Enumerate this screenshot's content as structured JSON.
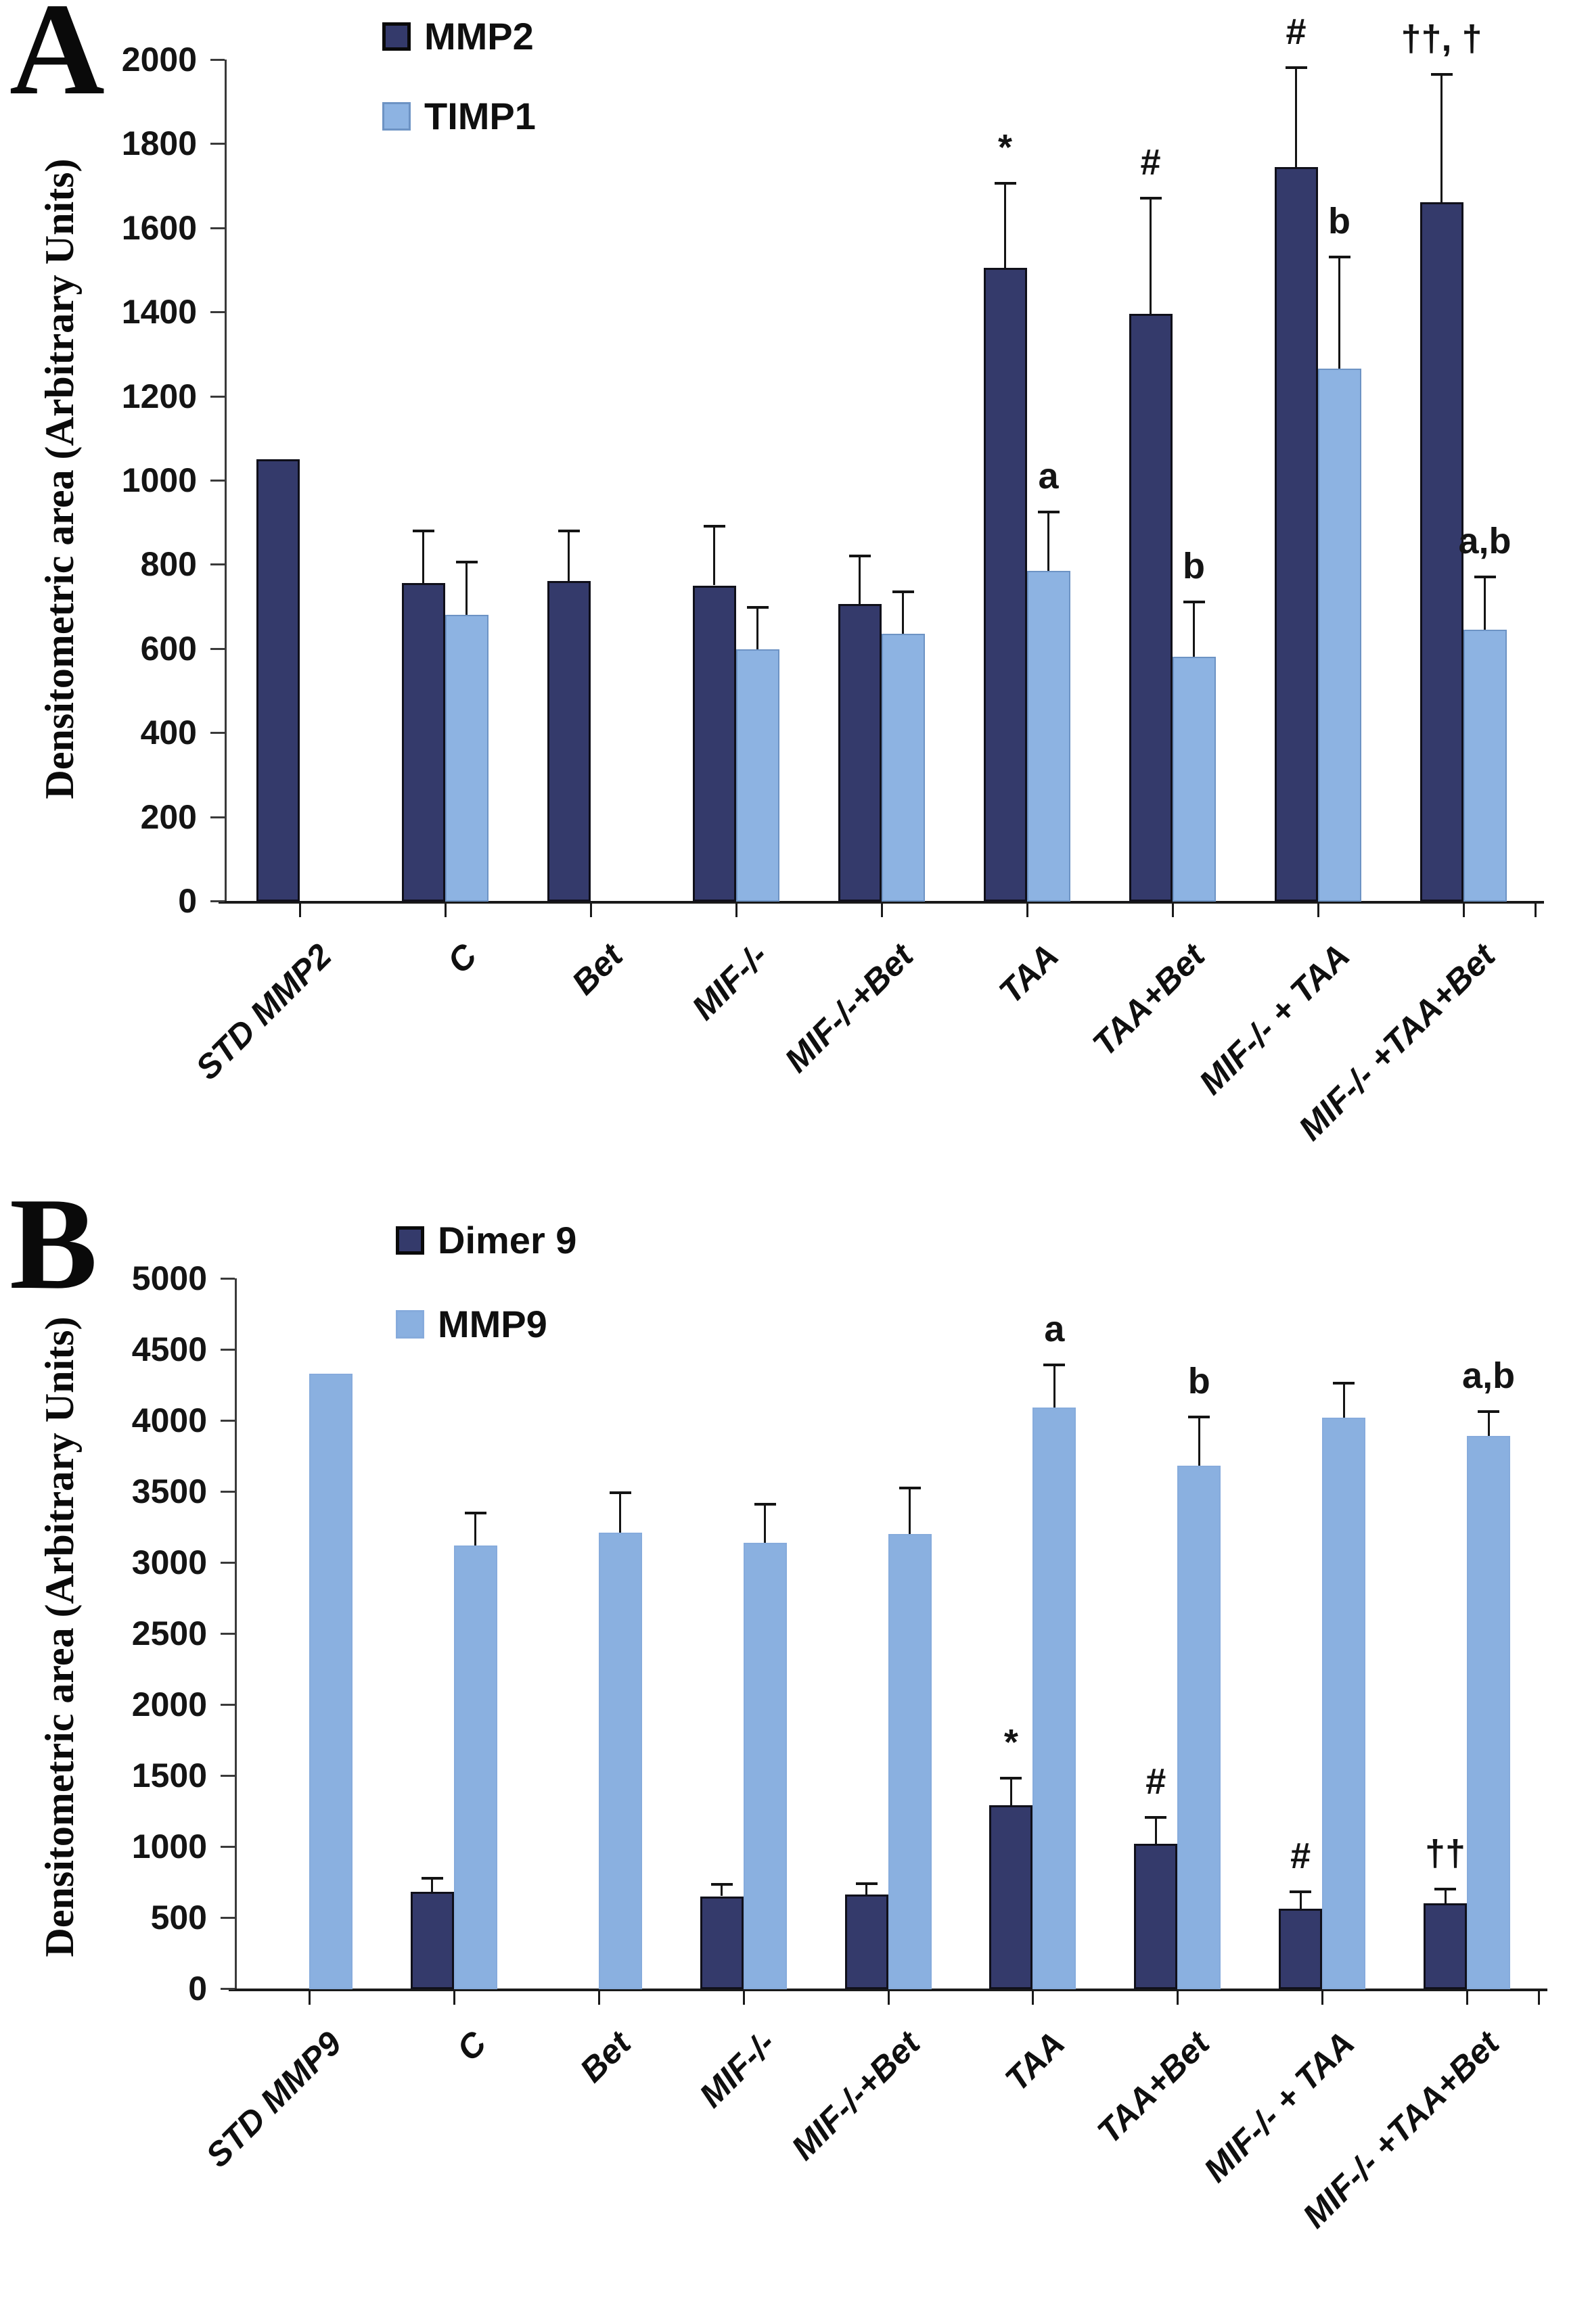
{
  "chart_data": [
    {
      "panel_label": "A",
      "type": "bar",
      "ylabel": "Densitometric area (Arbitrary Units)",
      "ylim": [
        0,
        2000
      ],
      "ystep": 200,
      "grid": false,
      "legend_position": "top-inside-left",
      "categories": [
        "STD MMP2",
        "C",
        "Bet",
        "MIF-/-",
        "MIF-/-+Bet",
        "TAA",
        "TAA+Bet",
        "MIF-/- + TAA",
        "MIF-/- +TAA+Bet"
      ],
      "series": [
        {
          "name": "MMP2",
          "color": "#343a6b",
          "border_color": "#10101a",
          "values": [
            1050,
            755,
            760,
            750,
            705,
            1505,
            1395,
            1745,
            1660
          ],
          "errors_plus": [
            null,
            125,
            120,
            140,
            115,
            200,
            275,
            235,
            305
          ],
          "annotations": [
            null,
            null,
            null,
            null,
            null,
            "*",
            "#",
            "#",
            "††, †"
          ]
        },
        {
          "name": "TIMP1",
          "color": "#8db3e2",
          "border_color": "#6d93c4",
          "values": [
            null,
            680,
            null,
            598,
            635,
            785,
            580,
            1265,
            645
          ],
          "errors_plus": [
            null,
            125,
            null,
            100,
            100,
            140,
            130,
            265,
            125
          ],
          "annotations": [
            null,
            null,
            null,
            null,
            null,
            "a",
            "b",
            "b",
            "a,b"
          ]
        }
      ]
    },
    {
      "panel_label": "B",
      "type": "bar",
      "ylabel": "Densitometric area (Arbitrary Units)",
      "ylim": [
        0,
        5000
      ],
      "ystep": 500,
      "grid": false,
      "legend_position": "top-inside-left",
      "categories": [
        "STD MMP9",
        "C",
        "Bet",
        "MIF-/-",
        "MIF-/-+Bet",
        "TAA",
        "TAA+Bet",
        "MIF-/- + TAA",
        "MIF-/- +TAA+Bet"
      ],
      "series": [
        {
          "name": "Dimer 9",
          "color": "#343a6b",
          "border_color": "#10101a",
          "values": [
            null,
            680,
            null,
            650,
            660,
            1290,
            1020,
            560,
            600
          ],
          "errors_plus": [
            null,
            95,
            null,
            85,
            80,
            190,
            185,
            120,
            100
          ],
          "annotations": [
            null,
            null,
            null,
            null,
            null,
            "*",
            "#",
            "#",
            "††"
          ]
        },
        {
          "name": "MMP9",
          "color": "#8ab0e0",
          "border_color": "#86abdc",
          "values": [
            4330,
            3120,
            3210,
            3140,
            3200,
            4090,
            3680,
            4020,
            3890
          ],
          "errors_plus": [
            null,
            230,
            280,
            270,
            325,
            300,
            345,
            240,
            170
          ],
          "annotations": [
            null,
            null,
            null,
            null,
            null,
            "a",
            "b",
            null,
            "a,b"
          ]
        }
      ]
    }
  ]
}
